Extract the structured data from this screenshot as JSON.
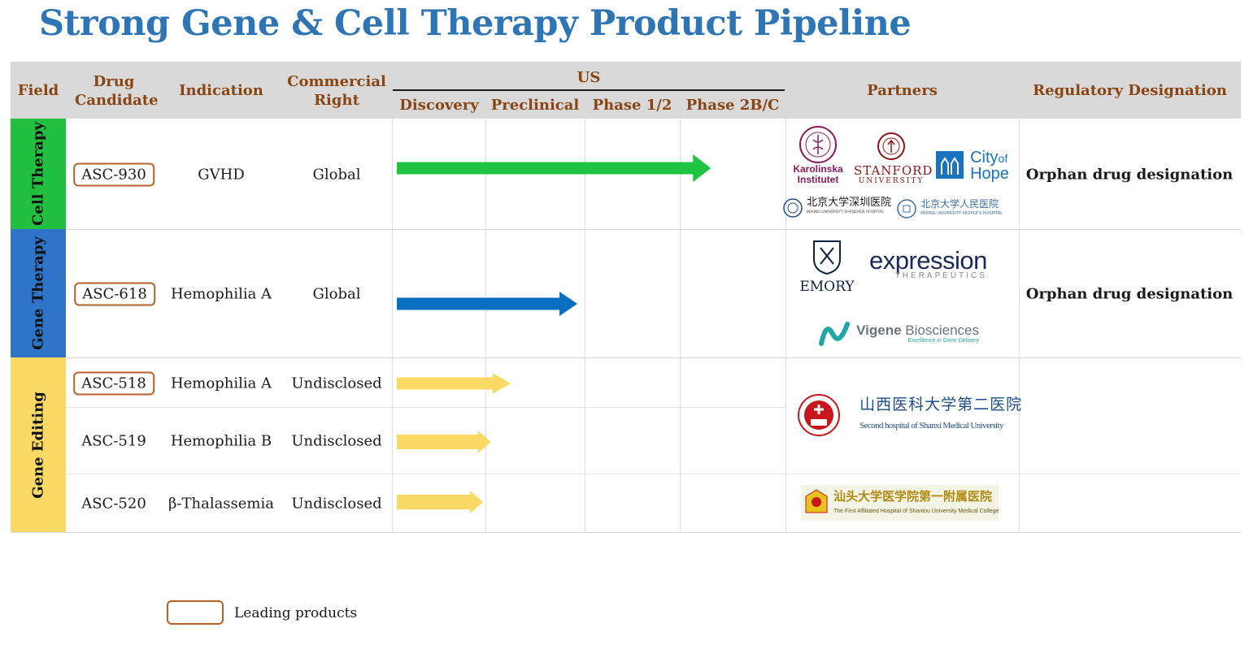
{
  "title": "Strong Gene & Cell Therapy Product Pipeline",
  "header": {
    "field": "Field",
    "drug_candidate": "Drug Candidate",
    "indication": "Indication",
    "commercial_right": "Commercial Right",
    "us": "US",
    "stages": [
      "Discovery",
      "Preclinical",
      "Phase 1/2",
      "Phase 2B/C"
    ],
    "partners": "Partners",
    "regulatory": "Regulatory Designation"
  },
  "fields": [
    {
      "name": "Cell Therapy",
      "color": "#22c040"
    },
    {
      "name": "Gene Therapy",
      "color": "#2e75c9"
    },
    {
      "name": "Gene Editing",
      "color": "#fad964"
    }
  ],
  "rows": [
    {
      "drug": "ASC-930",
      "leading": true,
      "indication": "GVHD",
      "right": "Global",
      "progress": 0.81,
      "arrow_color": "#1fc440",
      "regulatory": "Orphan drug designation"
    },
    {
      "drug": "ASC-618",
      "leading": true,
      "indication": "Hemophilia A",
      "right": "Global",
      "progress": 0.47,
      "arrow_color": "#0a6ec0",
      "regulatory": "Orphan drug designation"
    },
    {
      "drug": "ASC-518",
      "leading": true,
      "indication": "Hemophilia A",
      "right": "Undisclosed",
      "progress": 0.3,
      "arrow_color": "#fad964",
      "regulatory": ""
    },
    {
      "drug": "ASC-519",
      "leading": false,
      "indication": "Hemophilia B",
      "right": "Undisclosed",
      "progress": 0.25,
      "arrow_color": "#fad964",
      "regulatory": ""
    },
    {
      "drug": "ASC-520",
      "leading": false,
      "indication": "β-Thalassemia",
      "right": "Undisclosed",
      "progress": 0.23,
      "arrow_color": "#fad964",
      "regulatory": ""
    }
  ],
  "partners": {
    "karolinska": "Karolinska Institutet",
    "stanford": "STANFORD",
    "stanford_sub": "UNIVERSITY",
    "city_of": "City",
    "city_of_small": "of",
    "hope": "Hope",
    "pku_shenzhen": "北京大学深圳医院",
    "pku_shenzhen_sub": "PEKING UNIVERSITY SHENZHEN HOSPITAL",
    "pku_people": "北京大学人民医院",
    "pku_people_sub": "PEKING UNIVERSITY PEOPLE'S HOSPITAL",
    "emory": "EMORY",
    "expression": "expression",
    "expression_sub": "THERAPEUTICS",
    "vigene": "Vigene",
    "vigene_bio": "Biosciences",
    "vigene_sub": "Excellence in Gene Delivery",
    "shanxi_cn": "山西医科大学第二医院",
    "shanxi_en": "Second hospital of Shanxi Medical University",
    "shantou_cn": "汕头大学医学院第一附属医院",
    "shantou_en": "The First Affiliated Hospital of Shantou University Medical College"
  },
  "legend": {
    "label": "Leading products"
  }
}
